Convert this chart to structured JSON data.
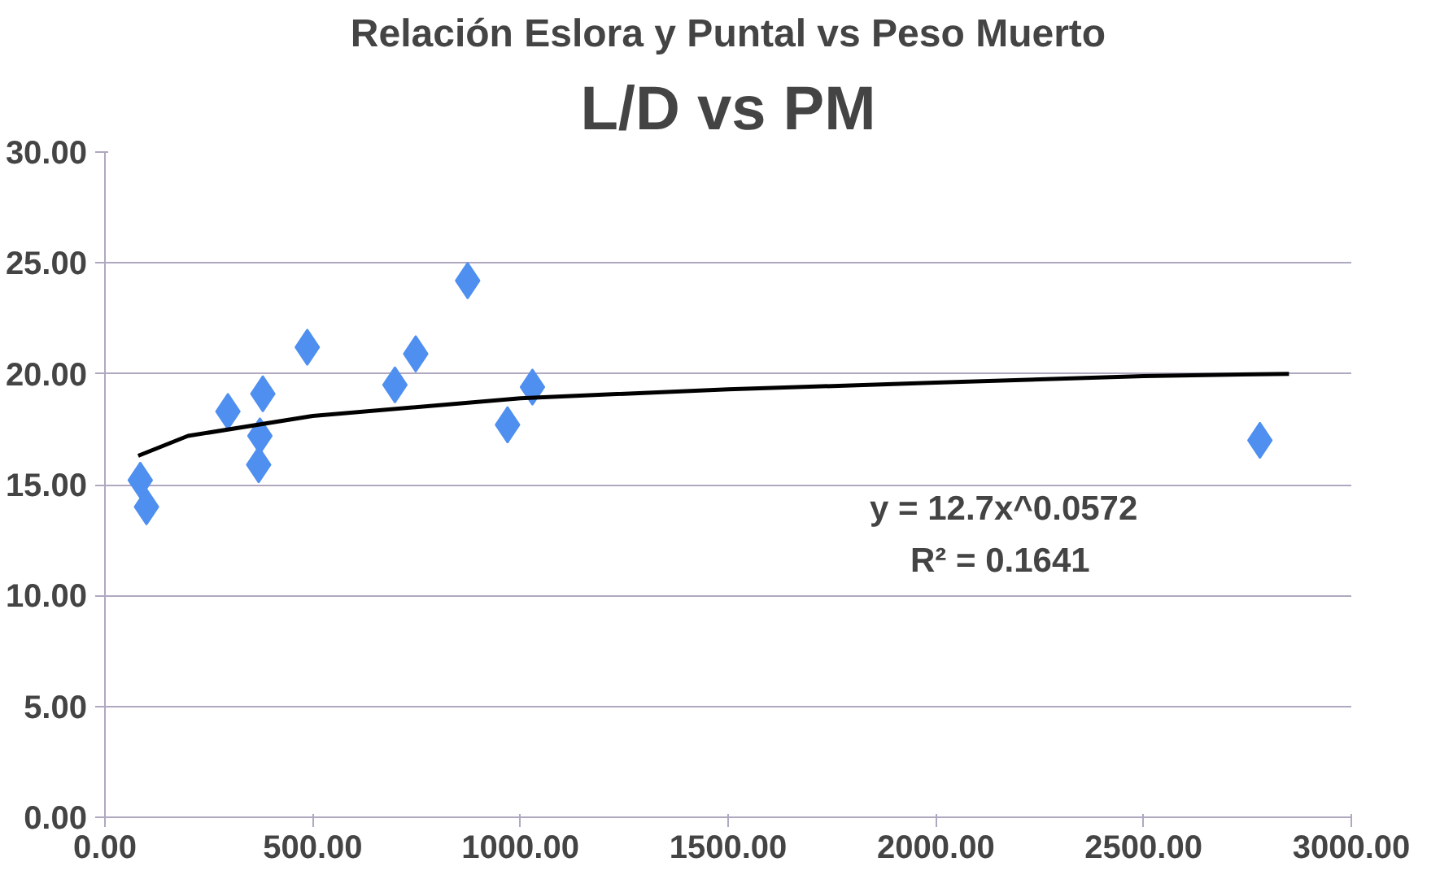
{
  "chart_data": {
    "type": "scatter",
    "title": "Relación Eslora y Puntal vs Peso Muerto",
    "subtitle": "L/D vs PM",
    "xlim": [
      0,
      3000
    ],
    "xticks": [
      {
        "value": 0,
        "label": "0.00"
      },
      {
        "value": 500,
        "label": "500.00"
      },
      {
        "value": 1000,
        "label": "1000.00"
      },
      {
        "value": 1500,
        "label": "1500.00"
      },
      {
        "value": 2000,
        "label": "2000.00"
      },
      {
        "value": 2500,
        "label": "2500.00"
      },
      {
        "value": 3000,
        "label": "3000.00"
      }
    ],
    "ylim": [
      0,
      30
    ],
    "yticks": [
      {
        "value": 0,
        "label": "0.00"
      },
      {
        "value": 5,
        "label": "5.00"
      },
      {
        "value": 10,
        "label": "10.00"
      },
      {
        "value": 15,
        "label": "15.00"
      },
      {
        "value": 20,
        "label": "20.00"
      },
      {
        "value": 25,
        "label": "25.00"
      },
      {
        "value": 30,
        "label": "30.00"
      }
    ],
    "grid": "y",
    "series": [
      {
        "marker": "diamond",
        "color": "#4f8ff0",
        "x": [
          85,
          100,
          296,
          380,
          373,
          370,
          487,
          698,
          748,
          873,
          969,
          1029,
          2780
        ],
        "values": [
          15.2,
          14.0,
          18.3,
          19.1,
          17.2,
          15.9,
          21.2,
          19.5,
          20.9,
          24.2,
          17.7,
          19.4,
          17.0
        ]
      },
      {
        "type": "line",
        "color": "#000000",
        "x": [
          80,
          200,
          500,
          1000,
          1500,
          2000,
          2500,
          2850
        ],
        "values": [
          16.3,
          17.2,
          18.1,
          18.9,
          19.3,
          19.6,
          19.9,
          20.0
        ]
      }
    ],
    "annotations": [
      "y = 12.7x^0.0572",
      "R² = 0.1641"
    ]
  }
}
